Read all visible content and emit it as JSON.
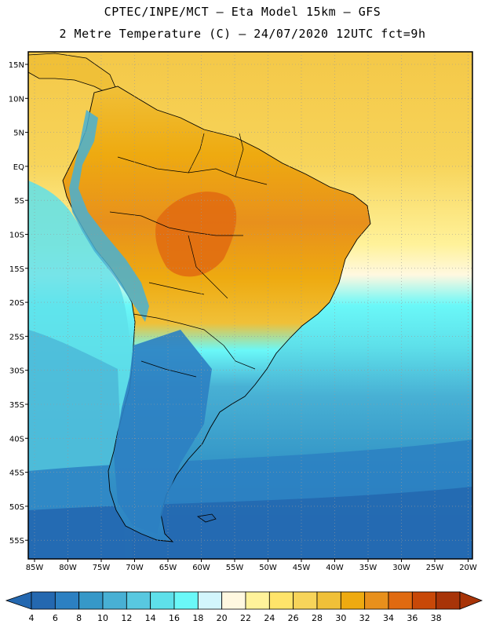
{
  "header": {
    "line1": "CPTEC/INPE/MCT –  Eta Model 15km – GFS",
    "line2": "2 Metre Temperature (C) – 24/07/2020 12UTC fct=9h"
  },
  "axes": {
    "lat_labels": [
      "15N",
      "10N",
      "5N",
      "EQ",
      "5S",
      "10S",
      "15S",
      "20S",
      "25S",
      "30S",
      "35S",
      "40S",
      "45S",
      "50S",
      "55S"
    ],
    "lon_labels": [
      "85W",
      "80W",
      "75W",
      "70W",
      "65W",
      "60W",
      "55W",
      "50W",
      "45W",
      "40W",
      "35W",
      "30W",
      "25W",
      "20W"
    ]
  },
  "colorbar": {
    "labels": [
      "4",
      "6",
      "8",
      "10",
      "12",
      "14",
      "16",
      "18",
      "20",
      "22",
      "24",
      "26",
      "28",
      "30",
      "32",
      "34",
      "36",
      "38"
    ],
    "colors": [
      "#2468b0",
      "#2c80c2",
      "#3698c8",
      "#48b0d4",
      "#58c8e0",
      "#5ee0ea",
      "#6af8f8",
      "#d2f5fc",
      "#fff8e0",
      "#fff29a",
      "#ffe46a",
      "#f7d45a",
      "#f0c038",
      "#eeaa10",
      "#e8901c",
      "#e06a10",
      "#c84808",
      "#a83408"
    ]
  },
  "colors": {
    "ocean_deep": "#2468b0",
    "ocean_mid": "#3698c8",
    "ocean_cyan": "#5ee0ea",
    "tropic_ocean": "#f7d45a",
    "land_hot": "#e8901c",
    "land_warm": "#f0c038",
    "land_cold": "#2c80c2"
  }
}
